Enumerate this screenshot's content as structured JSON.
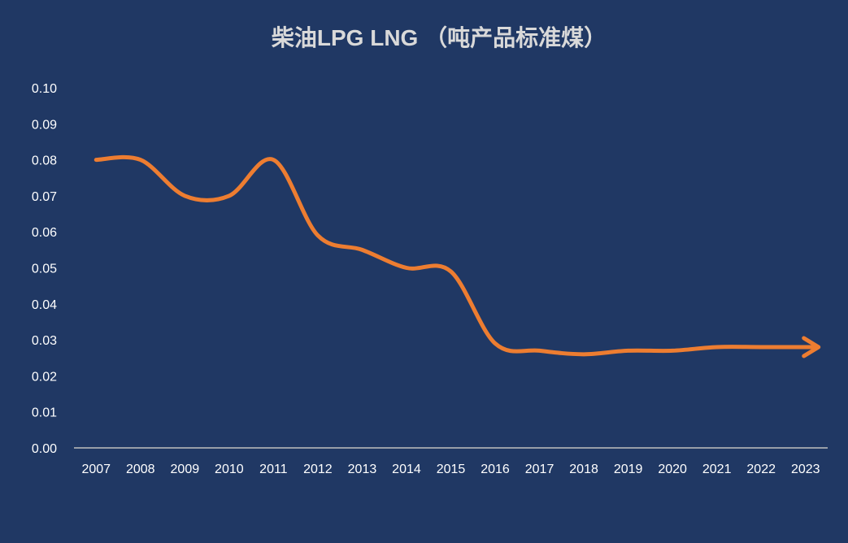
{
  "chart_data": {
    "type": "line",
    "title": "柴油LPG  LNG （吨产品标准煤）",
    "xlabel": "",
    "ylabel": "",
    "categories": [
      "2007",
      "2008",
      "2009",
      "2010",
      "2011",
      "2012",
      "2013",
      "2014",
      "2015",
      "2016",
      "2017",
      "2018",
      "2019",
      "2020",
      "2021",
      "2022",
      "2023"
    ],
    "series": [
      {
        "values": [
          0.08,
          0.08,
          0.07,
          0.07,
          0.08,
          0.059,
          0.055,
          0.05,
          0.049,
          0.029,
          0.027,
          0.026,
          0.027,
          0.027,
          0.028,
          0.028,
          0.028
        ]
      }
    ],
    "ylim": [
      0,
      0.1
    ],
    "yticks": [
      "0.00",
      "0.01",
      "0.02",
      "0.03",
      "0.04",
      "0.05",
      "0.06",
      "0.07",
      "0.08",
      "0.09",
      "0.10"
    ],
    "grid": false,
    "legend": "none",
    "end_marker": "arrow",
    "colors": {
      "background": "#203864",
      "line": "#ED7D31",
      "axis": "#BFBFBF",
      "title": "#D9D9D9",
      "tick": "#FFFFFF"
    }
  }
}
